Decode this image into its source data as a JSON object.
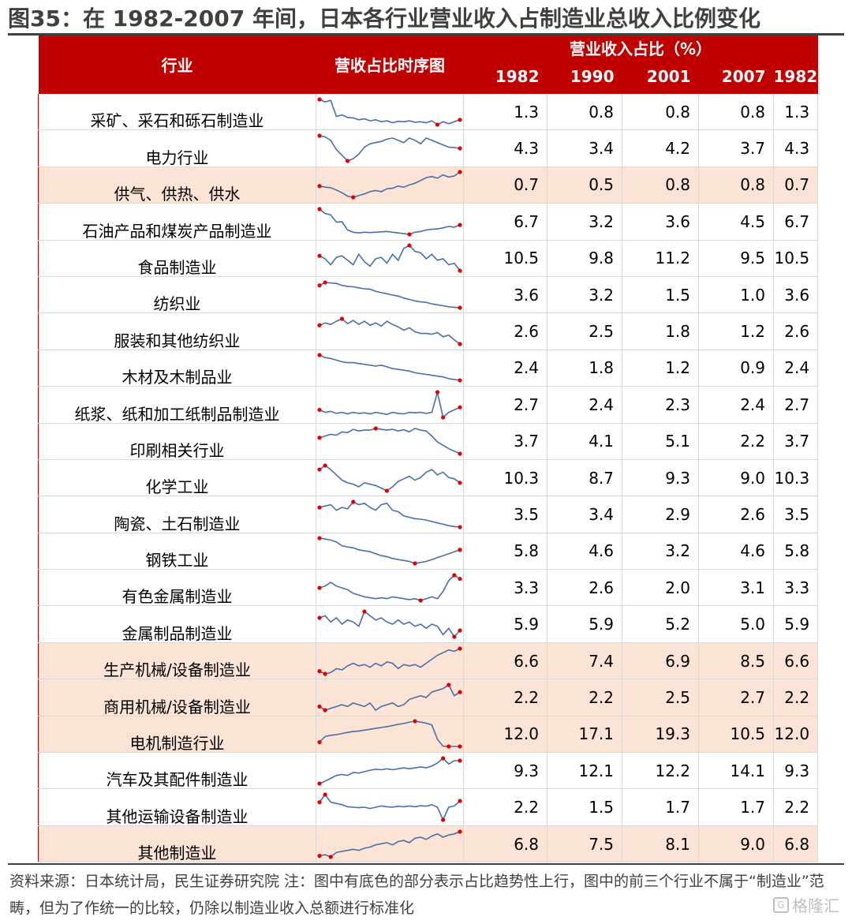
{
  "title": "图35：在 1982-2007 年间，日本各行业营业收入占制造业总收入比例变化",
  "header": {
    "industry": "行业",
    "sparkline": "营收占比时序图",
    "ratio": "营业收入占比（%）",
    "years": [
      "1982",
      "1990",
      "2001",
      "2007",
      "1982"
    ]
  },
  "note": "资料来源：日本统计局，民生证券研究院 注：图中有底色的部分表示占比趋势性上行，图中的前三个行业不属于“制造业”范畴，但为了作统一的比较，仍除以制造业收入总额进行标准化",
  "watermark": "格隆汇",
  "colors": {
    "header": "#c00000",
    "highlight": "#fbe4d5",
    "line": "#4a6ea8",
    "marker": "#e00000"
  },
  "chart_data": {
    "type": "table",
    "title": "图35：在 1982-2007 年间，日本各行业营业收入占制造业总收入比例变化",
    "columns": [
      "1982",
      "1990",
      "2001",
      "2007",
      "1982"
    ],
    "unit": "%",
    "rows": [
      {
        "industry": "采矿、采石和砾石制造业",
        "values": [
          "1.3",
          "0.8",
          "0.8",
          "0.8",
          "1.3"
        ],
        "highlight": false,
        "trend": [
          1.3,
          1.25,
          1.28,
          0.95,
          0.98,
          0.93,
          0.92,
          0.88,
          0.9,
          0.86,
          0.88,
          0.84,
          0.86,
          0.82,
          0.85,
          0.84,
          0.86,
          0.83,
          0.84,
          0.82,
          0.86,
          0.78,
          0.84,
          0.8,
          0.84,
          0.88
        ]
      },
      {
        "industry": "电力行业",
        "values": [
          "4.3",
          "3.4",
          "4.2",
          "3.7",
          "4.3"
        ],
        "highlight": false,
        "trend": [
          4.3,
          4.25,
          4.1,
          3.7,
          3.45,
          3.2,
          3.3,
          3.5,
          3.8,
          3.95,
          4.0,
          4.05,
          4.15,
          4.2,
          4.1,
          4.0,
          4.2,
          4.1,
          3.95,
          4.2,
          4.1,
          4.0,
          3.9,
          3.8,
          3.78,
          3.75
        ]
      },
      {
        "industry": "供气、供热、供水",
        "values": [
          "0.7",
          "0.5",
          "0.8",
          "0.8",
          "0.7"
        ],
        "highlight": true,
        "trend": [
          0.7,
          0.68,
          0.67,
          0.63,
          0.58,
          0.52,
          0.5,
          0.53,
          0.56,
          0.6,
          0.62,
          0.6,
          0.65,
          0.66,
          0.7,
          0.68,
          0.72,
          0.75,
          0.8,
          0.85,
          0.87,
          0.84,
          0.9,
          0.86,
          0.88,
          0.95
        ]
      },
      {
        "industry": "石油产品和煤炭产品制造业",
        "values": [
          "6.7",
          "3.2",
          "3.6",
          "4.5",
          "6.7"
        ],
        "highlight": false,
        "trend": [
          6.7,
          6.1,
          5.9,
          4.9,
          4.95,
          3.8,
          3.5,
          3.4,
          3.5,
          3.45,
          3.5,
          3.55,
          3.6,
          3.5,
          3.4,
          3.3,
          3.2,
          3.5,
          3.6,
          3.8,
          3.9,
          3.95,
          4.1,
          4.3,
          4.2,
          4.5
        ]
      },
      {
        "industry": "食品制造业",
        "values": [
          "10.5",
          "9.8",
          "11.2",
          "9.5",
          "10.5"
        ],
        "highlight": false,
        "trend": [
          10.5,
          10.3,
          9.9,
          10.4,
          10.5,
          10.2,
          9.9,
          10.6,
          10.1,
          9.8,
          10.3,
          10.4,
          10.0,
          10.6,
          10.2,
          11.0,
          11.2,
          10.8,
          10.7,
          10.3,
          10.6,
          10.2,
          10.3,
          9.9,
          10.0,
          9.5
        ]
      },
      {
        "industry": "纺织业",
        "values": [
          "3.6",
          "3.2",
          "1.5",
          "1.0",
          "3.6"
        ],
        "highlight": false,
        "trend": [
          3.3,
          3.6,
          3.55,
          3.5,
          3.3,
          3.2,
          3.15,
          3.05,
          2.95,
          2.9,
          2.7,
          2.55,
          2.45,
          2.3,
          2.2,
          2.0,
          1.85,
          1.7,
          1.6,
          1.55,
          1.4,
          1.3,
          1.2,
          1.1,
          1.05,
          1.0
        ]
      },
      {
        "industry": "服装和其他纺织业",
        "values": [
          "2.6",
          "2.5",
          "1.8",
          "1.2",
          "2.6"
        ],
        "highlight": false,
        "trend": [
          2.4,
          2.55,
          2.45,
          2.65,
          2.8,
          2.5,
          2.7,
          2.45,
          2.65,
          2.4,
          2.55,
          2.35,
          2.65,
          2.45,
          2.3,
          2.1,
          2.25,
          2.0,
          1.9,
          1.9,
          1.85,
          1.95,
          1.7,
          1.8,
          1.5,
          1.25
        ]
      },
      {
        "industry": "木材及木制品业",
        "values": [
          "2.4",
          "1.8",
          "1.2",
          "0.9",
          "2.4"
        ],
        "highlight": false,
        "trend": [
          2.4,
          2.25,
          2.2,
          2.1,
          2.0,
          1.95,
          1.95,
          1.9,
          1.85,
          1.8,
          1.75,
          1.8,
          1.7,
          1.6,
          1.55,
          1.5,
          1.45,
          1.35,
          1.3,
          1.25,
          1.2,
          1.15,
          1.1,
          1.0,
          0.95,
          0.9
        ]
      },
      {
        "industry": "纸浆、纸和加工纸制品制造业",
        "values": [
          "2.7",
          "2.4",
          "2.3",
          "2.4",
          "2.7"
        ],
        "highlight": false,
        "trend": [
          2.35,
          2.3,
          2.32,
          2.28,
          2.3,
          2.27,
          2.3,
          2.28,
          2.29,
          2.27,
          2.3,
          2.28,
          2.26,
          2.3,
          2.28,
          2.27,
          2.3,
          2.29,
          2.3,
          2.28,
          2.3,
          2.7,
          2.2,
          2.3,
          2.35,
          2.4
        ]
      },
      {
        "industry": "印刷相关行业",
        "values": [
          "3.7",
          "4.1",
          "5.1",
          "2.2",
          "3.7"
        ],
        "highlight": false,
        "trend": [
          4.1,
          4.3,
          4.5,
          4.4,
          4.8,
          4.7,
          5.1,
          4.9,
          5.0,
          5.0,
          5.2,
          5.1,
          5.0,
          5.1,
          4.9,
          5.05,
          4.8,
          5.2,
          5.0,
          4.9,
          4.3,
          3.6,
          3.2,
          2.8,
          2.5,
          2.2
        ]
      },
      {
        "industry": "化学工业",
        "values": [
          "10.3",
          "8.7",
          "9.3",
          "9.0",
          "10.3"
        ],
        "highlight": false,
        "trend": [
          10.0,
          10.3,
          10.0,
          9.6,
          9.2,
          9.0,
          8.9,
          8.7,
          9.0,
          8.9,
          8.8,
          8.6,
          8.4,
          8.7,
          9.1,
          9.3,
          9.5,
          9.2,
          9.4,
          9.8,
          10.0,
          9.6,
          9.8,
          9.4,
          9.3,
          9.0
        ]
      },
      {
        "industry": "陶瓷、土石制造业",
        "values": [
          "3.5",
          "3.4",
          "2.9",
          "2.6",
          "3.5"
        ],
        "highlight": false,
        "trend": [
          3.3,
          3.35,
          3.4,
          3.2,
          3.3,
          3.25,
          3.5,
          3.4,
          3.45,
          3.3,
          3.2,
          3.4,
          3.45,
          3.2,
          3.15,
          3.0,
          2.95,
          2.9,
          2.88,
          2.85,
          2.8,
          2.75,
          2.7,
          2.65,
          2.62,
          2.6
        ]
      },
      {
        "industry": "钢铁工业",
        "values": [
          "5.8",
          "4.6",
          "3.2",
          "4.6",
          "5.8"
        ],
        "highlight": false,
        "trend": [
          5.8,
          5.7,
          5.6,
          5.4,
          5.0,
          4.9,
          4.8,
          4.6,
          4.5,
          4.4,
          4.2,
          4.0,
          3.9,
          3.7,
          3.6,
          3.5,
          3.4,
          3.2,
          3.3,
          3.4,
          3.6,
          3.8,
          4.0,
          4.2,
          4.4,
          4.6
        ]
      },
      {
        "industry": "有色金属制造业",
        "values": [
          "3.3",
          "2.6",
          "2.0",
          "3.1",
          "3.3"
        ],
        "highlight": false,
        "trend": [
          2.6,
          2.7,
          2.9,
          2.7,
          2.6,
          2.5,
          2.3,
          2.2,
          2.1,
          2.05,
          2.0,
          2.05,
          2.0,
          2.1,
          2.05,
          2.0,
          1.95,
          2.0,
          1.9,
          2.0,
          2.1,
          2.0,
          2.4,
          3.0,
          3.3,
          3.1
        ]
      },
      {
        "industry": "金属制品制造业",
        "values": [
          "5.9",
          "5.9",
          "5.2",
          "5.0",
          "5.9"
        ],
        "highlight": false,
        "trend": [
          5.8,
          5.9,
          5.6,
          5.8,
          5.5,
          5.7,
          5.6,
          5.4,
          6.1,
          5.9,
          5.7,
          5.8,
          5.6,
          5.5,
          5.7,
          5.5,
          5.6,
          5.4,
          5.5,
          5.3,
          5.5,
          5.4,
          5.0,
          5.3,
          4.9,
          5.2
        ]
      },
      {
        "industry": "生产机械/设备制造业",
        "values": [
          "6.6",
          "7.4",
          "6.9",
          "8.5",
          "6.6"
        ],
        "highlight": true,
        "trend": [
          6.8,
          6.6,
          6.7,
          7.0,
          6.9,
          7.2,
          7.4,
          7.2,
          7.3,
          7.1,
          7.4,
          7.2,
          7.5,
          7.4,
          7.0,
          7.3,
          7.2,
          7.3,
          7.1,
          7.4,
          7.7,
          8.0,
          8.2,
          8.4,
          8.3,
          8.5
        ]
      },
      {
        "industry": "商用机械/设备制造业",
        "values": [
          "2.2",
          "2.2",
          "2.5",
          "2.7",
          "2.2"
        ],
        "highlight": true,
        "trend": [
          2.3,
          2.2,
          2.25,
          2.3,
          2.35,
          2.3,
          2.4,
          2.35,
          2.3,
          2.4,
          2.2,
          2.3,
          2.35,
          2.4,
          2.3,
          2.35,
          2.5,
          2.55,
          2.6,
          2.55,
          2.7,
          2.75,
          2.8,
          2.9,
          2.6,
          2.7
        ]
      },
      {
        "industry": "电机制造行业",
        "values": [
          "12.0",
          "17.1",
          "19.3",
          "10.5",
          "12.0"
        ],
        "highlight": true,
        "trend": [
          12.0,
          14.0,
          14.4,
          14.6,
          15.0,
          15.4,
          15.7,
          15.9,
          16.2,
          16.5,
          16.8,
          17.1,
          17.4,
          17.8,
          18.2,
          18.5,
          19.0,
          19.3,
          19.0,
          18.6,
          18.0,
          13.0,
          10.6,
          10.5,
          10.5,
          10.5
        ]
      },
      {
        "industry": "汽车及其配件制造业",
        "values": [
          "9.3",
          "12.1",
          "12.2",
          "14.1",
          "9.3"
        ],
        "highlight": false,
        "trend": [
          9.3,
          9.8,
          10.4,
          11.0,
          11.2,
          11.0,
          11.6,
          11.5,
          11.8,
          12.1,
          12.3,
          12.2,
          12.4,
          12.2,
          12.4,
          12.6,
          12.4,
          12.6,
          12.8,
          12.6,
          13.0,
          13.6,
          14.6,
          13.4,
          14.1,
          14.1
        ]
      },
      {
        "industry": "其他运输设备制造业",
        "values": [
          "2.2",
          "1.5",
          "1.7",
          "1.7",
          "2.2"
        ],
        "highlight": false,
        "trend": [
          1.9,
          2.2,
          1.9,
          1.85,
          1.8,
          1.72,
          1.7,
          1.68,
          1.7,
          1.65,
          1.7,
          1.75,
          1.72,
          1.7,
          1.74,
          1.72,
          1.75,
          1.72,
          1.76,
          1.74,
          1.8,
          1.7,
          1.2,
          1.7,
          1.75,
          1.95
        ]
      },
      {
        "industry": "其他制造业",
        "values": [
          "6.8",
          "7.5",
          "8.1",
          "9.0",
          "6.8"
        ],
        "highlight": true,
        "trend": [
          6.8,
          6.9,
          6.7,
          7.1,
          7.2,
          7.3,
          7.4,
          7.3,
          7.5,
          7.6,
          7.8,
          7.9,
          8.0,
          7.8,
          8.1,
          8.2,
          8.0,
          8.4,
          8.5,
          8.3,
          8.6,
          8.8,
          8.5,
          8.7,
          8.8,
          9.0
        ]
      }
    ]
  }
}
